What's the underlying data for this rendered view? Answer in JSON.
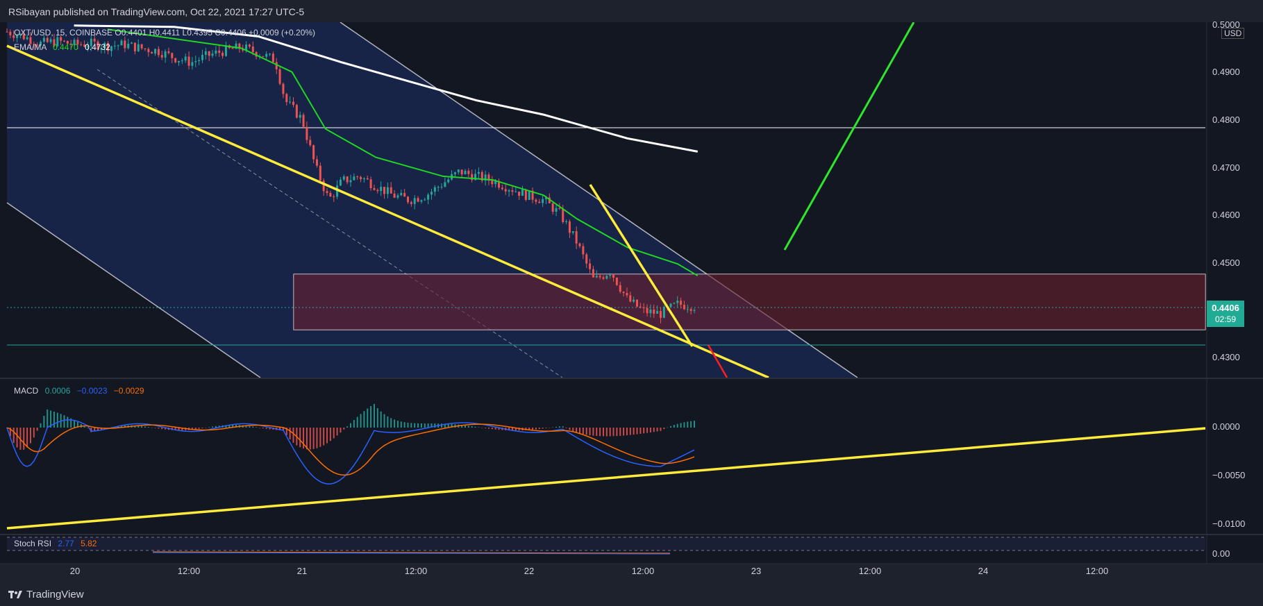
{
  "header": {
    "publisher_text": "RSibayan published on TradingView.com, Oct 22, 2021 17:27 UTC-5"
  },
  "legend": {
    "symbol_line": "OXT/USD, 15, COINBASE  O0.4401  H0.4411  L0.4395  C0.4406  +0.0009 (+0.20%)",
    "ema_label": "EMA/MA",
    "ema_value": "0.4470",
    "ma_value": "0.4732"
  },
  "price_axis": {
    "unit": "USD",
    "ticks": [
      "0.5000",
      "0.4900",
      "0.4800",
      "0.4700",
      "0.4600",
      "0.4500",
      "0.4300"
    ],
    "last_price": "0.4406",
    "countdown": "02:59"
  },
  "macd": {
    "label": "MACD",
    "hist": "0.0006",
    "macd": "−0.0023",
    "signal": "−0.0029",
    "ticks": [
      "0.0000",
      "−0.0050",
      "−0.0100"
    ]
  },
  "stoch": {
    "label": "Stoch RSI",
    "k": "2.77",
    "d": "5.82",
    "ticks": [
      "0.00"
    ]
  },
  "time_axis": {
    "labels": [
      "20",
      "12:00",
      "21",
      "12:00",
      "22",
      "12:00",
      "23",
      "12:00",
      "24",
      "12:00"
    ]
  },
  "footer": {
    "brand": "TradingView"
  },
  "colors": {
    "background": "#131722",
    "up": "#26a69a",
    "down": "#ef5350",
    "ema": "#22d622",
    "ma": "#ffffff",
    "trendline": "#ffeb3b",
    "macd_line": "#2962ff",
    "signal_line": "#ff6d00",
    "target_arrow": "#2ee62e"
  },
  "chart_data": {
    "type": "candlestick",
    "symbol": "OXT/USD",
    "exchange": "COINBASE",
    "timeframe": "15",
    "ohlc": {
      "open": 0.4401,
      "high": 0.4411,
      "low": 0.4395,
      "close": 0.4406,
      "change": 0.0009,
      "change_pct": 0.2
    },
    "ema": 0.447,
    "ma": 0.4732,
    "ylim": [
      0.4255,
      0.5005
    ],
    "x_ticks": [
      "20",
      "12:00",
      "21",
      "12:00",
      "22",
      "12:00",
      "23",
      "12:00",
      "24",
      "12:00"
    ],
    "price_path": [
      [
        0,
        0.4985
      ],
      [
        0.5,
        0.4975
      ],
      [
        1,
        0.496
      ],
      [
        1.5,
        0.4965
      ],
      [
        2,
        0.4958
      ],
      [
        2.5,
        0.496
      ],
      [
        3,
        0.4955
      ],
      [
        3.5,
        0.4958
      ],
      [
        4,
        0.495
      ],
      [
        4.5,
        0.4945
      ],
      [
        5,
        0.493
      ],
      [
        5.5,
        0.492
      ],
      [
        6,
        0.4935
      ],
      [
        6.5,
        0.4945
      ],
      [
        7,
        0.4952
      ],
      [
        7.5,
        0.494
      ],
      [
        8,
        0.4925
      ],
      [
        8.3,
        0.484
      ],
      [
        8.8,
        0.48
      ],
      [
        9.2,
        0.47
      ],
      [
        9.6,
        0.463
      ],
      [
        10,
        0.467
      ],
      [
        10.5,
        0.468
      ],
      [
        11,
        0.466
      ],
      [
        11.5,
        0.464
      ],
      [
        12,
        0.463
      ],
      [
        12.5,
        0.464
      ],
      [
        13,
        0.4665
      ],
      [
        13.5,
        0.469
      ],
      [
        14,
        0.468
      ],
      [
        14.5,
        0.467
      ],
      [
        15,
        0.4655
      ],
      [
        15.5,
        0.464
      ],
      [
        16,
        0.463
      ],
      [
        16.5,
        0.46
      ],
      [
        17,
        0.454
      ],
      [
        17.5,
        0.446
      ],
      [
        18,
        0.448
      ],
      [
        18.5,
        0.442
      ],
      [
        19,
        0.4395
      ],
      [
        19.5,
        0.439
      ],
      [
        20,
        0.441
      ],
      [
        20.5,
        0.4406
      ]
    ],
    "ema_path": [
      [
        3,
        0.499
      ],
      [
        5,
        0.497
      ],
      [
        7,
        0.495
      ],
      [
        8.5,
        0.49
      ],
      [
        9.5,
        0.478
      ],
      [
        11,
        0.472
      ],
      [
        13,
        0.468
      ],
      [
        14.5,
        0.4672
      ],
      [
        16,
        0.464
      ],
      [
        17,
        0.459
      ],
      [
        18.5,
        0.453
      ],
      [
        20,
        0.4495
      ],
      [
        20.6,
        0.447
      ]
    ],
    "ma_path": [
      [
        2,
        0.4998
      ],
      [
        5,
        0.4995
      ],
      [
        7.5,
        0.4975
      ],
      [
        10,
        0.492
      ],
      [
        12.5,
        0.487
      ],
      [
        14,
        0.484
      ],
      [
        16,
        0.481
      ],
      [
        18.5,
        0.476
      ],
      [
        20.6,
        0.4732
      ]
    ],
    "level_lines": [
      0.4785,
      0.4325
    ],
    "supply_zone": [
      0.4365,
      0.4483
    ],
    "last_price": 0.4406,
    "macd_values": {
      "histogram": 0.0006,
      "macd": -0.0023,
      "signal": -0.0029,
      "ticks": [
        0,
        -0.005,
        -0.01
      ]
    },
    "stoch_rsi_values": {
      "k": 2.77,
      "d": 5.82
    }
  }
}
